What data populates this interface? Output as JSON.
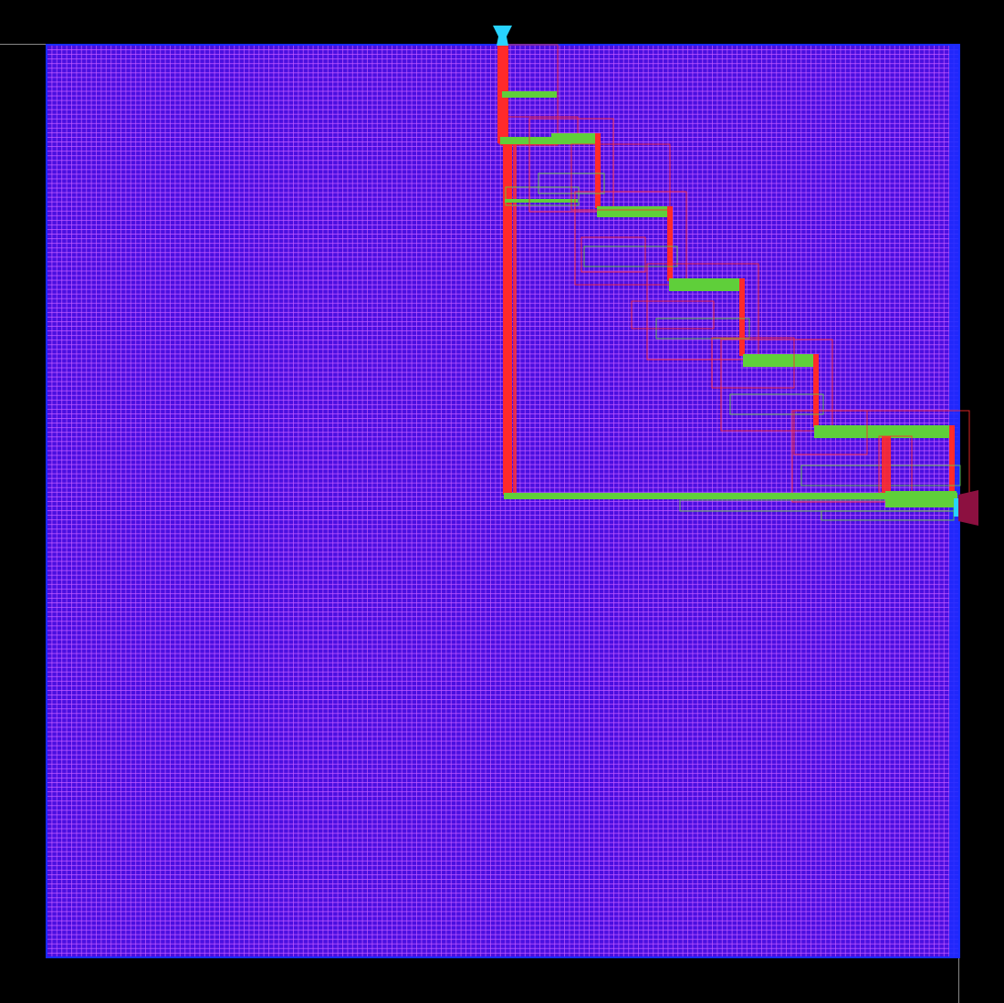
{
  "view": {
    "title": "",
    "background_color": "#000000",
    "die_fill_color": "#4a0fe0",
    "grid_row_color": "#b14bff",
    "grid_col_color": "#c05cff",
    "die_border_color": "#1a2bff",
    "vertical_route_color": "#ff2a2a",
    "horizontal_route_color": "#5fcf3a",
    "input_pin_color": "#27d3ff",
    "output_pin_color": "#8c1040",
    "axis_line_color": "#888888"
  },
  "pins": [
    {
      "name": "input-pin",
      "side": "top",
      "color": "#27d3ff"
    },
    {
      "name": "output-pin",
      "side": "right",
      "color": "#8c1040"
    }
  ],
  "routing": {
    "description_layers": [
      "vertical",
      "horizontal"
    ],
    "staircase_steps": 7
  }
}
